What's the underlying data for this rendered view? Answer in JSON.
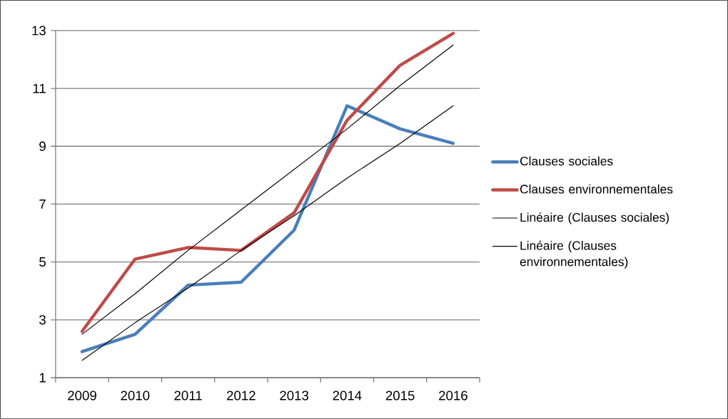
{
  "chart_data": {
    "type": "line",
    "categories": [
      "2009",
      "2010",
      "2011",
      "2012",
      "2013",
      "2014",
      "2015",
      "2016"
    ],
    "series": [
      {
        "name": "Clauses sociales",
        "color": "#4a7ebb",
        "values": [
          1.9,
          2.5,
          4.2,
          4.3,
          6.1,
          10.4,
          9.6,
          9.1
        ]
      },
      {
        "name": "Clauses environnementales",
        "color": "#be4b48",
        "values": [
          2.6,
          5.1,
          5.5,
          5.4,
          6.7,
          9.9,
          11.8,
          12.9
        ]
      },
      {
        "name": "Linéaire (Clauses sociales)",
        "color": "#000000",
        "values": [
          1.6,
          2.9,
          4.1,
          5.4,
          6.6,
          7.9,
          9.1,
          10.4
        ]
      },
      {
        "name": "Linéaire (Clauses environnementales)",
        "color": "#000000",
        "values": [
          2.5,
          3.9,
          5.4,
          6.8,
          8.2,
          9.6,
          11.1,
          12.5
        ]
      }
    ],
    "ylim": [
      1,
      13
    ],
    "yticks": [
      1,
      3,
      5,
      7,
      9,
      11,
      13
    ],
    "grid": "y",
    "legend": "right",
    "marker": "none",
    "line_style": "solid"
  }
}
